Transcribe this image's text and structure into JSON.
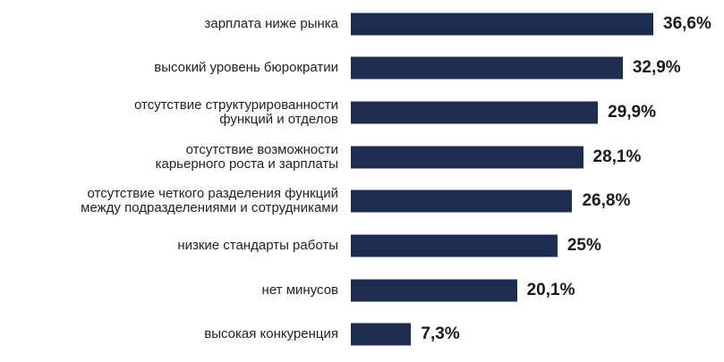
{
  "chart_data": {
    "type": "bar",
    "orientation": "horizontal",
    "title": "",
    "xlabel": "",
    "ylabel": "",
    "grid": false,
    "bar_color": "#1f2c52",
    "xlim": [
      0,
      36.6
    ],
    "categories": [
      "зарплата ниже рынка",
      "высокий уровень бюрократии",
      "отсутствие структурированности\nфункций и отделов",
      "отсутствие возможности\nкарьерного роста и зарплаты",
      "отсутствие четкого разделения функций\nмежду подразделениями и сотрудниками",
      "низкие стандарты работы",
      "нет минусов",
      "высокая конкуренция"
    ],
    "values": [
      36.6,
      32.9,
      29.9,
      28.1,
      26.8,
      25,
      20.1,
      7.3
    ],
    "value_labels": [
      "36,6%",
      "32,9%",
      "29,9%",
      "28,1%",
      "26,8%",
      "25%",
      "20,1%",
      "7,3%"
    ]
  }
}
